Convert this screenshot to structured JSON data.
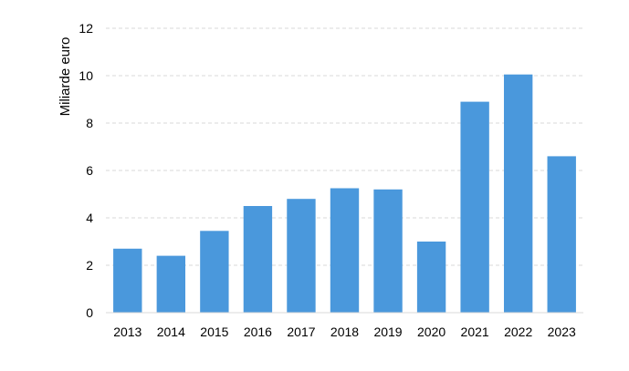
{
  "chart_data": {
    "type": "bar",
    "title": "",
    "xlabel": "",
    "ylabel": "Miliarde euro",
    "categories": [
      "2013",
      "2014",
      "2015",
      "2016",
      "2017",
      "2018",
      "2019",
      "2020",
      "2021",
      "2022",
      "2023"
    ],
    "values": [
      2.7,
      2.4,
      3.45,
      4.5,
      4.8,
      5.25,
      5.2,
      3.0,
      8.9,
      10.05,
      6.6
    ],
    "ylim": [
      0,
      12
    ],
    "yticks": [
      "0",
      "2",
      "4",
      "6",
      "8",
      "10",
      "12"
    ],
    "grid": true,
    "legend": "none",
    "bar_color": "#4a98dc"
  }
}
